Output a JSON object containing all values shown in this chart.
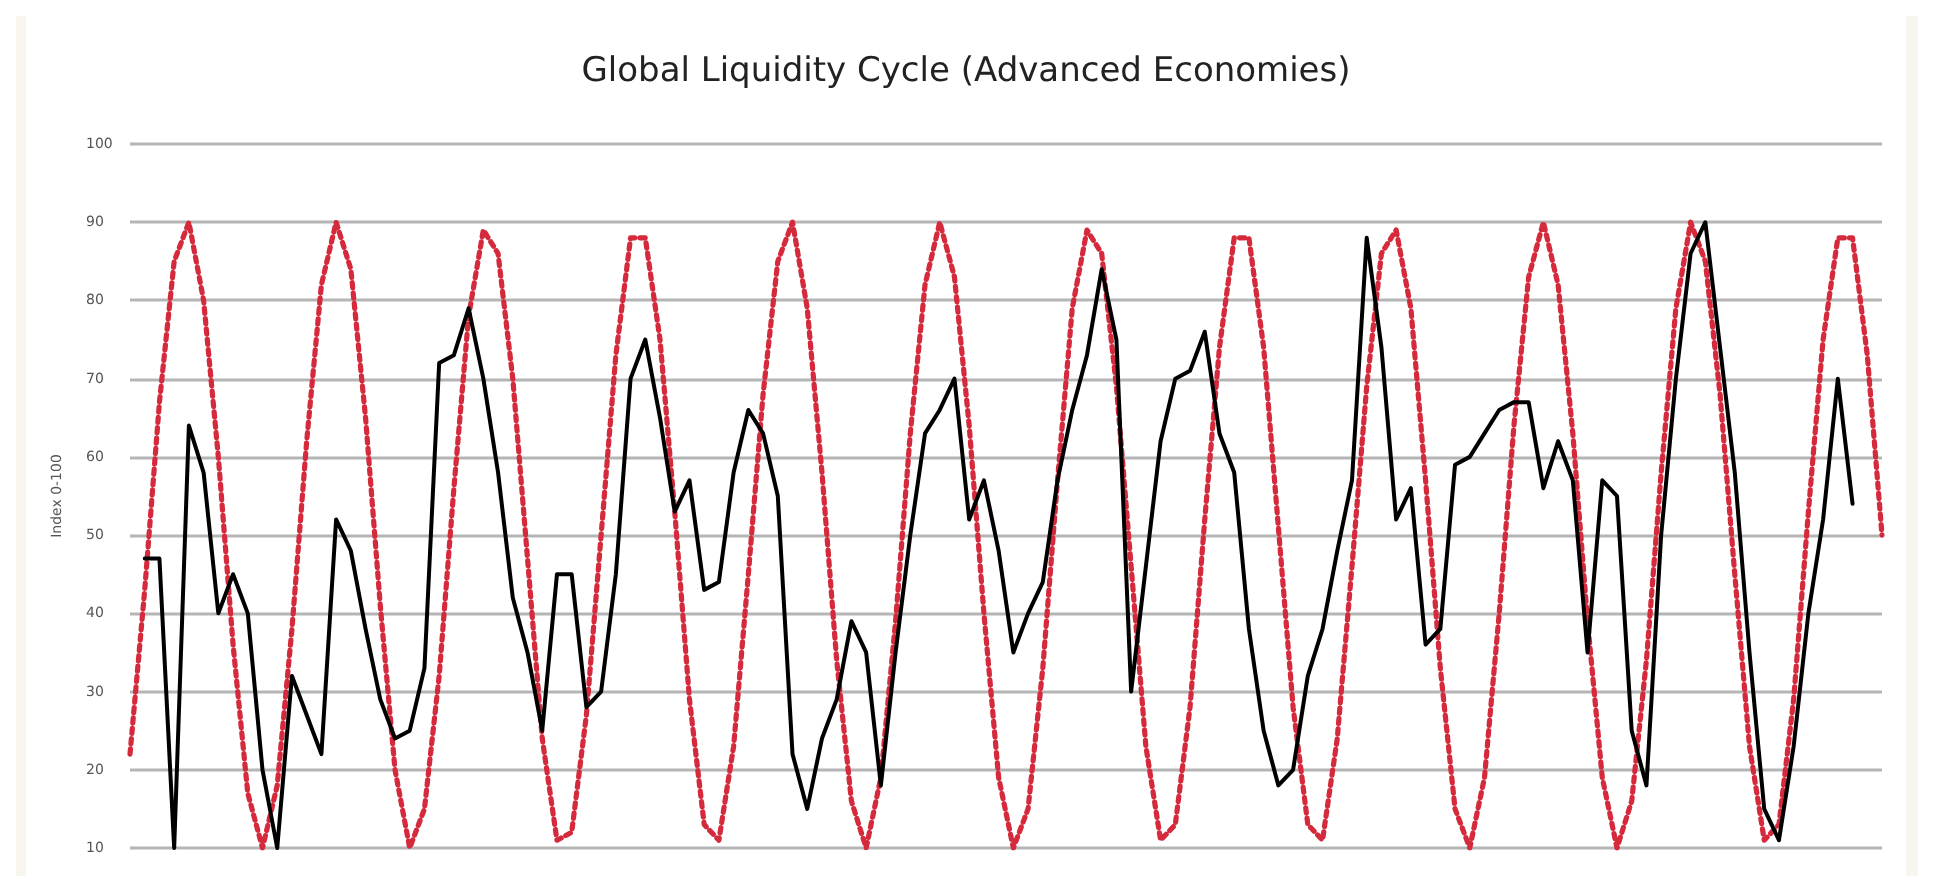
{
  "chart_data": {
    "type": "line",
    "title": "Global Liquidity Cycle (Advanced Economies)",
    "ylabel": "Index 0-100",
    "categories": [
      null,
      null,
      null,
      null,
      null,
      null,
      null,
      null,
      null,
      null,
      null,
      null,
      null,
      null,
      null,
      null,
      null,
      null,
      null,
      null,
      null,
      null,
      null,
      null,
      null,
      null,
      null,
      null,
      null,
      null,
      null,
      null,
      null,
      null,
      null,
      null,
      null,
      null,
      null,
      null,
      null,
      null,
      null,
      null,
      null,
      null,
      null,
      null,
      null,
      null,
      null,
      null,
      null,
      null,
      null,
      null,
      null,
      null,
      null,
      null,
      null,
      null,
      null,
      null,
      null,
      null,
      null,
      null,
      null,
      null,
      null,
      null,
      null,
      null,
      null,
      null,
      null,
      null,
      null,
      null,
      null,
      null,
      null,
      null,
      null,
      null,
      null,
      null,
      null,
      null,
      null,
      null,
      null,
      null,
      null,
      null,
      null,
      null,
      null,
      null,
      null,
      null,
      null,
      null,
      null,
      null,
      null,
      null,
      null,
      null,
      null,
      null,
      null,
      null,
      null,
      null,
      null,
      null,
      null,
      null
    ],
    "series": [
      {
        "color": "#d42a3c",
        "line_style": "dotted",
        "values": [
          22,
          43,
          67,
          85,
          90,
          80,
          60,
          36,
          17,
          10,
          18,
          38,
          62,
          82,
          90,
          84,
          65,
          41,
          20,
          10,
          15,
          32,
          56,
          78,
          89,
          86,
          70,
          47,
          24,
          11,
          12,
          27,
          50,
          73,
          88,
          88,
          75,
          53,
          29,
          13,
          11,
          23,
          45,
          68,
          85,
          90,
          79,
          58,
          34,
          16,
          10,
          19,
          39,
          63,
          82,
          90,
          83,
          64,
          40,
          19,
          10,
          15,
          33,
          57,
          79,
          89,
          86,
          69,
          46,
          23,
          11,
          13,
          28,
          52,
          74,
          88,
          88,
          74,
          51,
          28,
          13,
          11,
          24,
          46,
          69,
          86,
          89,
          79,
          57,
          33,
          15,
          10,
          19,
          40,
          64,
          83,
          90,
          82,
          63,
          39,
          19,
          10,
          16,
          34,
          58,
          79,
          90,
          85,
          68,
          45,
          23,
          11,
          13,
          29,
          53,
          75,
          88,
          88,
          73,
          50
        ]
      },
      {
        "color": "#000000",
        "line_style": "solid",
        "values": [
          null,
          47,
          47,
          10,
          64,
          58,
          40,
          45,
          40,
          20,
          10,
          32,
          27,
          22,
          52,
          48,
          38,
          29,
          24,
          25,
          33,
          72,
          73,
          79,
          70,
          58,
          42,
          35,
          25,
          45,
          45,
          28,
          30,
          45,
          70,
          75,
          65,
          53,
          57,
          43,
          44,
          58,
          66,
          63,
          55,
          22,
          15,
          24,
          29,
          39,
          35,
          18,
          35,
          50,
          63,
          66,
          70,
          52,
          57,
          48,
          35,
          40,
          44,
          57,
          66,
          73,
          84,
          75,
          30,
          46,
          62,
          70,
          71,
          76,
          63,
          58,
          38,
          25,
          18,
          20,
          32,
          38,
          48,
          57,
          88,
          74,
          52,
          56,
          36,
          38,
          59,
          60,
          63,
          66,
          67,
          67,
          56,
          62,
          57,
          35,
          57,
          55,
          25,
          18,
          50,
          70,
          86,
          90,
          74,
          58,
          35,
          15,
          11,
          23,
          40,
          52,
          70,
          54,
          null,
          null
        ]
      }
    ],
    "ylim": [
      10,
      100
    ],
    "yticks": [
      10,
      20,
      30,
      40,
      50,
      60,
      70,
      80,
      90,
      100
    ],
    "grid": "y",
    "tick_labels": "y"
  }
}
